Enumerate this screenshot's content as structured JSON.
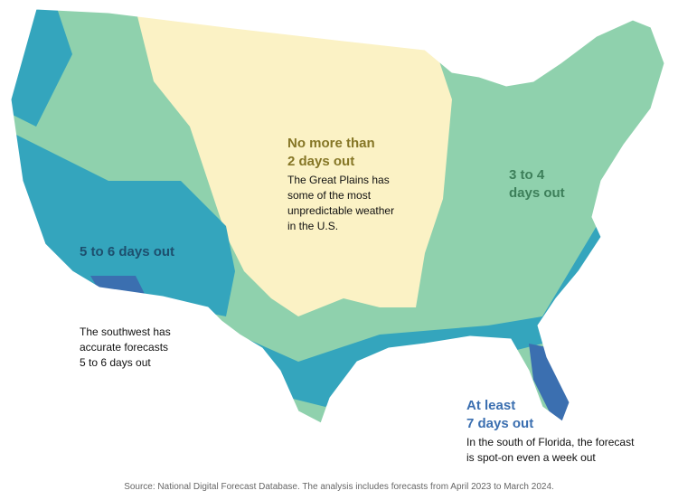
{
  "annotations": [
    {
      "heading": [
        "No more than",
        "2 days out"
      ],
      "body": [
        "The Great Plains has",
        "some of the most",
        "unpredictable weather",
        "in the U.S."
      ]
    },
    {
      "heading": [
        "3 to 4",
        "days out"
      ],
      "body": []
    },
    {
      "heading": [
        "5 to 6 days out"
      ],
      "body": []
    },
    {
      "heading": [],
      "body": [
        "The southwest has",
        "accurate forecasts",
        "5 to 6 days out"
      ]
    },
    {
      "heading": [
        "At least",
        "7 days out"
      ],
      "body": [
        "In the south of Florida, the forecast",
        "is spot-on even a week out"
      ]
    }
  ],
  "source": "Source: National Digital Forecast Database. The analysis includes forecasts from April 2023 to March 2024."
}
